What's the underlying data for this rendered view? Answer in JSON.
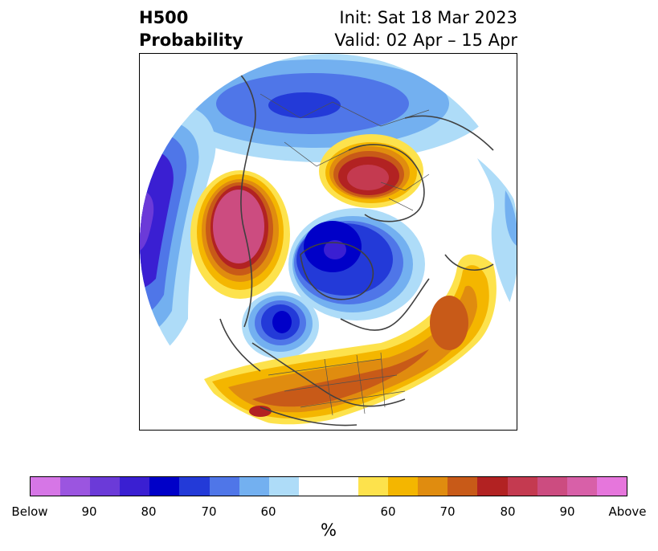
{
  "header": {
    "title_line1": "H500",
    "title_line2": "Probability",
    "init": "Init: Sat 18 Mar 2023",
    "valid": "Valid: 02 Apr – 15 Apr"
  },
  "colors": {
    "below_90plus": "#d676e6",
    "below_90": "#9b55e0",
    "below_85": "#6b3ad8",
    "below_80": "#3a1fd2",
    "below_75": "#0000c8",
    "below_70": "#233ad8",
    "below_65": "#4f76e8",
    "below_60": "#73b0f0",
    "below_55": "#aedcf8",
    "neutral": "#ffffff",
    "above_55": "#fde24c",
    "above_60": "#f4b600",
    "above_65": "#e08c0f",
    "above_70": "#c85a18",
    "above_75": "#b22222",
    "above_80": "#c43a50",
    "above_85": "#cc4c80",
    "above_90": "#d860a8",
    "above_90plus": "#e676dc"
  },
  "colorbar": {
    "ticks": [
      "Below",
      "90",
      "80",
      "70",
      "60",
      "60",
      "70",
      "80",
      "90",
      "Above"
    ],
    "unit_label": "%"
  }
}
